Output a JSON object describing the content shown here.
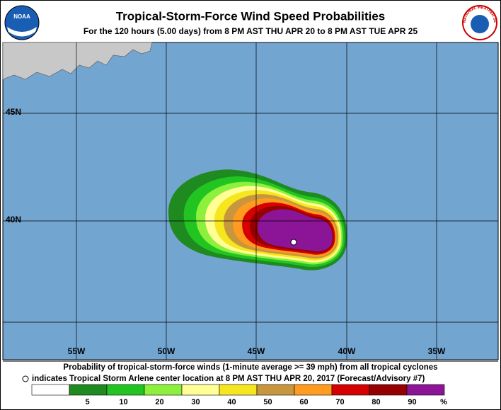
{
  "header": {
    "title": "Tropical-Storm-Force Wind Speed Probabilities",
    "subtitle": "For the 120 hours (5.00 days) from 8 PM AST THU APR 20 to 8 PM AST TUE APR 25",
    "logos": {
      "left": "NOAA",
      "right": "NATIONAL WEATHER SERVICE"
    }
  },
  "map": {
    "lat_labels": [
      "45N",
      "40N"
    ],
    "lon_labels": [
      "55W",
      "50W",
      "45W",
      "40W",
      "35W"
    ]
  },
  "footer": {
    "line1": "Probability of tropical-storm-force winds (1-minute average >= 39 mph) from all tropical cyclones",
    "line2": "indicates Tropical Storm Arlene center location at 8 PM AST THU APR 20, 2017 (Forecast/Advisory #7)"
  },
  "legend": {
    "colors": [
      "#ffffff",
      "#1f8a1f",
      "#22c422",
      "#8cf03c",
      "#ffff96",
      "#f5e61e",
      "#c8963c",
      "#ff9b1e",
      "#d70000",
      "#960000",
      "#8c1496"
    ],
    "labels": [
      "5",
      "10",
      "20",
      "30",
      "40",
      "50",
      "60",
      "70",
      "80",
      "90"
    ],
    "unit": "%"
  }
}
